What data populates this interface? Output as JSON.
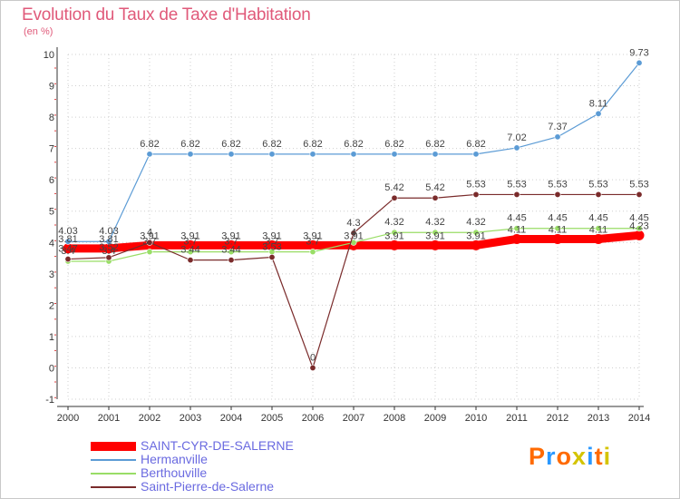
{
  "header": {
    "title": "Evolution du Taux de Taxe d'Habitation",
    "unit": "(en %)"
  },
  "logo": {
    "text": "Proxiti"
  },
  "chart_data": {
    "type": "line",
    "title": "Evolution du Taux de Taxe d'Habitation",
    "ylabel": "(en %)",
    "xlabel": "",
    "categories": [
      "2000",
      "2001",
      "2002",
      "2003",
      "2004",
      "2005",
      "2006",
      "2007",
      "2008",
      "2009",
      "2010",
      "2011",
      "2012",
      "2013",
      "2014"
    ],
    "ylim": [
      -1,
      10
    ],
    "yticks": [
      -1,
      0,
      1,
      2,
      3,
      4,
      5,
      6,
      7,
      8,
      9,
      10
    ],
    "grid": true,
    "legend_position": "bottom-left",
    "series": [
      {
        "name": "SAINT-CYR-DE-SALERNE",
        "color": "#ff0000",
        "values": [
          3.81,
          3.81,
          3.91,
          3.91,
          3.91,
          3.91,
          3.91,
          3.91,
          3.91,
          3.91,
          3.91,
          4.11,
          4.11,
          4.11,
          4.23
        ],
        "labels": [
          "3.81",
          "3.81",
          "3.91",
          "3.91",
          "3.91",
          "3.91",
          "3.91",
          "3.91",
          "3.91",
          "3.91",
          "3.91",
          "4.11",
          "4.11",
          "4.11",
          "4.23"
        ]
      },
      {
        "name": "Hermanville",
        "color": "#5b9bd5",
        "values": [
          4.03,
          4.03,
          6.82,
          6.82,
          6.82,
          6.82,
          6.82,
          6.82,
          6.82,
          6.82,
          6.82,
          7.02,
          7.37,
          8.11,
          9.73
        ],
        "labels": [
          "4.03",
          "4.03",
          "6.82",
          "6.82",
          "6.82",
          "6.82",
          "6.82",
          "6.82",
          "6.82",
          "6.82",
          "6.82",
          "7.02",
          "7.37",
          "8.11",
          "9.73"
        ]
      },
      {
        "name": "Berthouville",
        "color": "#99dd66",
        "values": [
          3.4,
          3.4,
          3.7,
          3.7,
          3.7,
          3.7,
          3.7,
          4.0,
          4.32,
          4.32,
          4.32,
          4.45,
          4.45,
          4.45,
          4.45
        ],
        "labels": [
          "3.4",
          "3.4",
          "3.7",
          "3.7",
          "3.7",
          "3.7",
          "3.7",
          "4",
          "4.32",
          "4.32",
          "4.32",
          "4.45",
          "4.45",
          "4.45",
          "4.45"
        ]
      },
      {
        "name": "Saint-Pierre-de-Salerne",
        "color": "#7a2b2b",
        "values": [
          3.47,
          3.52,
          4.0,
          3.44,
          3.44,
          3.53,
          0,
          4.3,
          5.42,
          5.42,
          5.53,
          5.53,
          5.53,
          5.53,
          5.53
        ],
        "labels": [
          "3.47",
          "3.52",
          "4",
          "3.44",
          "3.44",
          "3.53",
          "0",
          "4.3",
          "5.42",
          "5.42",
          "5.53",
          "5.53",
          "5.53",
          "5.53",
          "5.53"
        ]
      }
    ]
  }
}
